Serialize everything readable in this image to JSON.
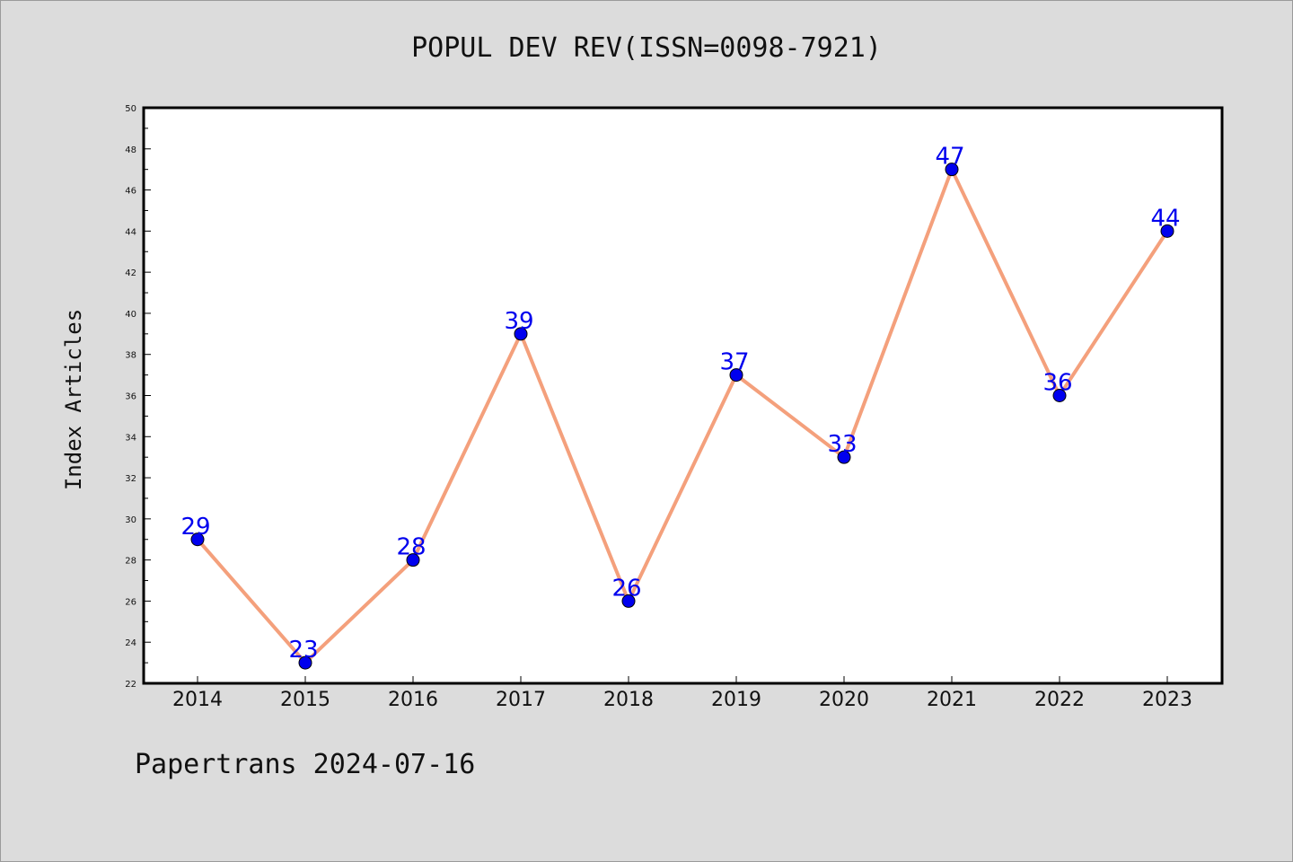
{
  "title": "POPUL DEV REV(ISSN=0098-7921)",
  "footer": "Papertrans 2024-07-16",
  "colors": {
    "background": "#dcdcdc",
    "plot_background": "#ffffff",
    "line": "#f4a07c",
    "marker": "#0000ee",
    "data_label": "#0000ee"
  },
  "chart_data": {
    "type": "line",
    "title": "POPUL DEV REV(ISSN=0098-7921)",
    "xlabel": "",
    "ylabel": "Index Articles",
    "categories": [
      "2014",
      "2015",
      "2016",
      "2017",
      "2018",
      "2019",
      "2020",
      "2021",
      "2022",
      "2023"
    ],
    "values": [
      29,
      23,
      28,
      39,
      26,
      37,
      33,
      47,
      36,
      44
    ],
    "ylim": [
      22,
      50
    ],
    "yticks": [
      22,
      24,
      26,
      28,
      30,
      32,
      34,
      36,
      38,
      40,
      42,
      44,
      46,
      48,
      50
    ],
    "grid": false,
    "data_labels": true
  }
}
